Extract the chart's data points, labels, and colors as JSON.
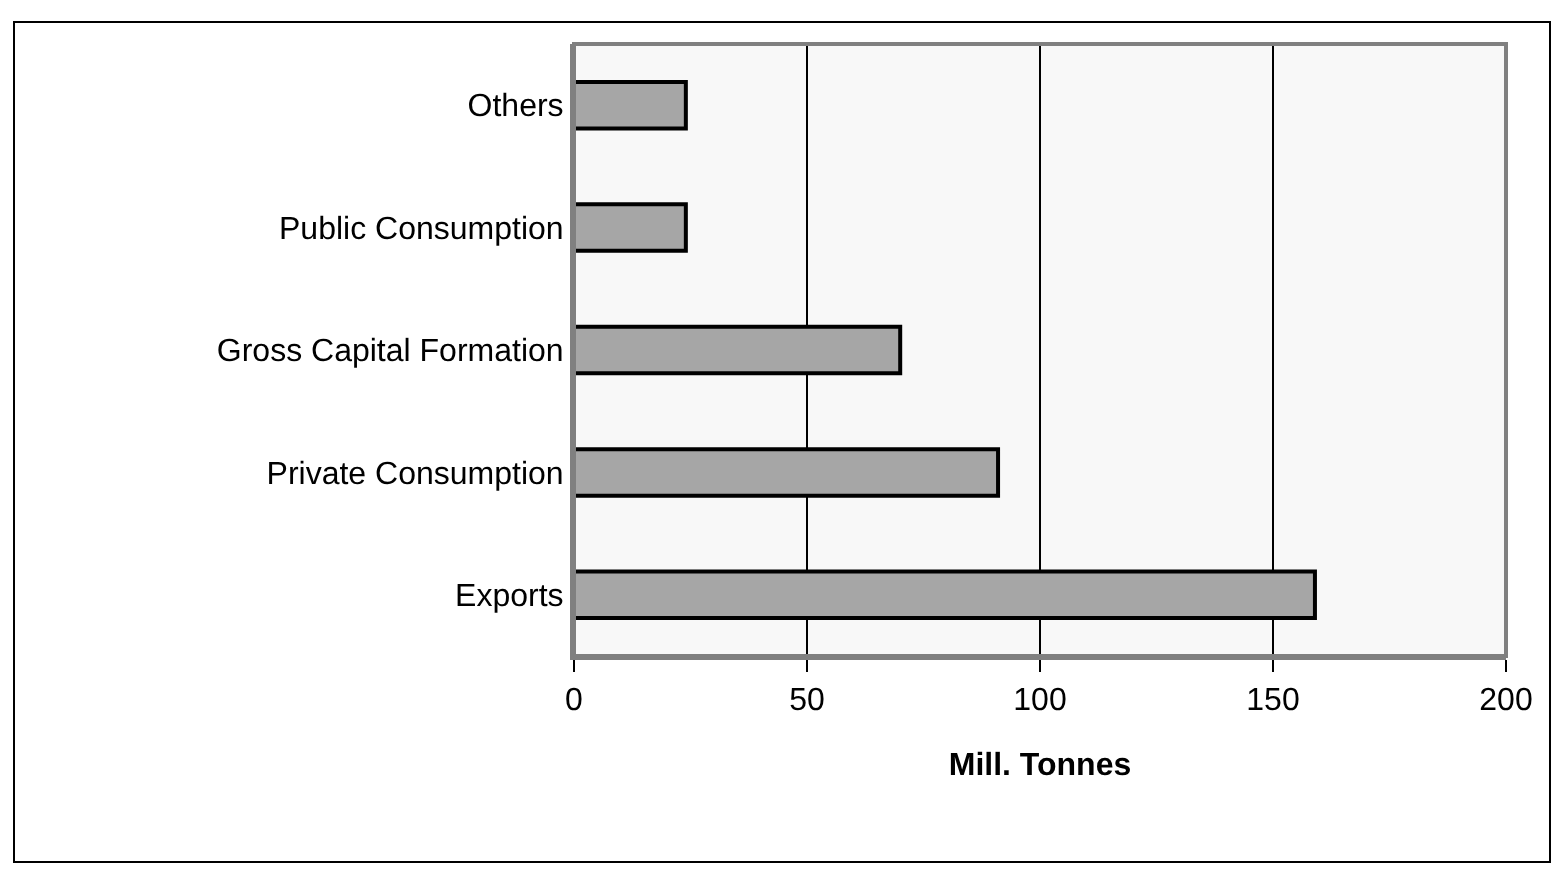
{
  "chart_data": {
    "type": "bar",
    "orientation": "horizontal",
    "categories": [
      "Others",
      "Public Consumption",
      "Gross Capital Formation",
      "Private Consumption",
      "Exports"
    ],
    "values": [
      24,
      24,
      70,
      91,
      159
    ],
    "color": "#a6a6a6",
    "xlabel": "Mill. Tonnes",
    "xlim": [
      0,
      200
    ],
    "xticks": [
      0,
      50,
      100,
      150,
      200
    ],
    "grid": "x",
    "legend": false
  }
}
